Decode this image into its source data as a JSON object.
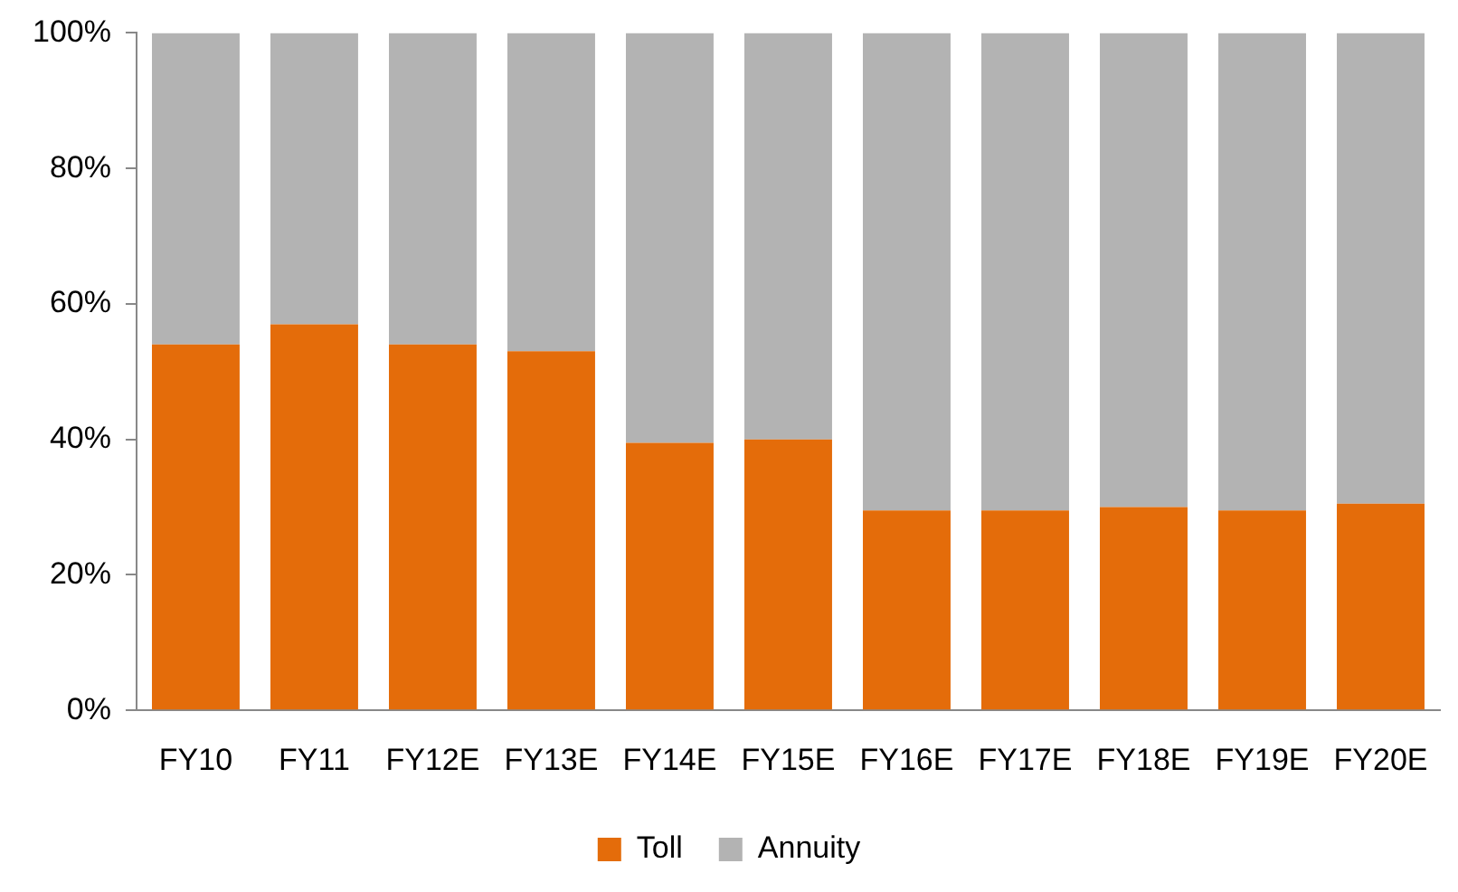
{
  "chart_data": {
    "type": "bar",
    "stacked": true,
    "categories": [
      "FY10",
      "FY11",
      "FY12E",
      "FY13E",
      "FY14E",
      "FY15E",
      "FY16E",
      "FY17E",
      "FY18E",
      "FY19E",
      "FY20E"
    ],
    "series": [
      {
        "name": "Toll",
        "color": "#e46c0a",
        "values": [
          54,
          57,
          54,
          53,
          39.5,
          40,
          29.5,
          29.5,
          30,
          29.5,
          30.5
        ]
      },
      {
        "name": "Annuity",
        "color": "#b3b3b3",
        "values": [
          46,
          43,
          46,
          47,
          60.5,
          60,
          70.5,
          70.5,
          70,
          70.5,
          69.5
        ]
      }
    ],
    "ylim": [
      0,
      100
    ],
    "yticks": [
      {
        "value": 0,
        "label": "0%"
      },
      {
        "value": 20,
        "label": "20%"
      },
      {
        "value": 40,
        "label": "40%"
      },
      {
        "value": 60,
        "label": "60%"
      },
      {
        "value": 80,
        "label": "80%"
      },
      {
        "value": 100,
        "label": "100%"
      }
    ],
    "grid": false,
    "legend": "bottom"
  }
}
